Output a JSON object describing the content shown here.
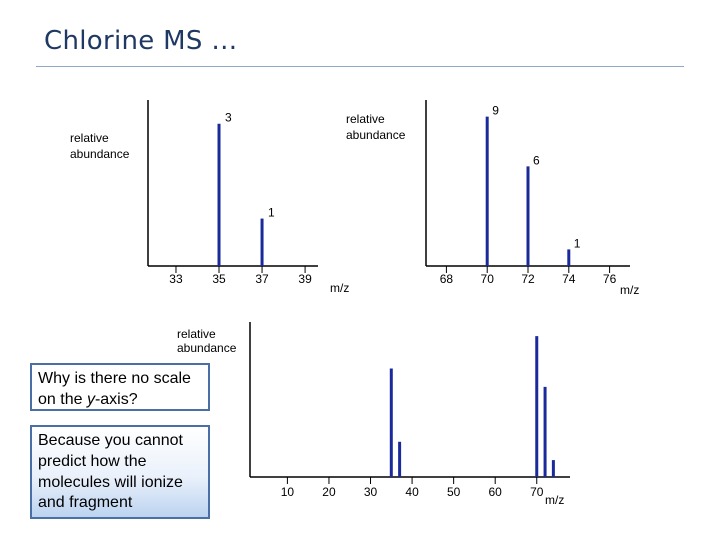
{
  "slide": {
    "title": "Chlorine MS …"
  },
  "callouts": {
    "question_parts": [
      "Why is there no scale on the ",
      "y",
      "-axis?"
    ],
    "answer": "Because you cannot predict how the molecules will ionize and fragment"
  },
  "colors": {
    "peak": "#1b2a9a",
    "title": "#1f3864",
    "callout_border": "#4a6fa5"
  },
  "chart_data": [
    {
      "type": "bar",
      "title": "",
      "ylabel": "relative abundance",
      "xlabel": "m/z",
      "x_ticks": [
        33,
        35,
        37,
        39
      ],
      "xlim": [
        31.7,
        39.6
      ],
      "ylim": [
        0,
        3.5
      ],
      "peaks": [
        {
          "x": 35,
          "y": 3,
          "label": "3"
        },
        {
          "x": 37,
          "y": 1,
          "label": "1"
        }
      ]
    },
    {
      "type": "bar",
      "title": "",
      "ylabel": "relative abundance",
      "xlabel": "m/z",
      "x_ticks": [
        68,
        70,
        72,
        74,
        76
      ],
      "xlim": [
        67,
        77
      ],
      "ylim": [
        0,
        10
      ],
      "peaks": [
        {
          "x": 70,
          "y": 9,
          "label": "9"
        },
        {
          "x": 72,
          "y": 6,
          "label": "6"
        },
        {
          "x": 74,
          "y": 1,
          "label": "1"
        }
      ]
    },
    {
      "type": "bar",
      "title": "",
      "ylabel": "relative abundance",
      "xlabel": "m/z",
      "x_ticks": [
        10,
        20,
        30,
        40,
        50,
        60,
        70
      ],
      "xlim": [
        1,
        78
      ],
      "ylim": [
        0,
        110
      ],
      "peaks": [
        {
          "x": 35,
          "y": 77
        },
        {
          "x": 37,
          "y": 25
        },
        {
          "x": 70,
          "y": 100
        },
        {
          "x": 72,
          "y": 64
        },
        {
          "x": 74,
          "y": 12
        }
      ]
    }
  ]
}
